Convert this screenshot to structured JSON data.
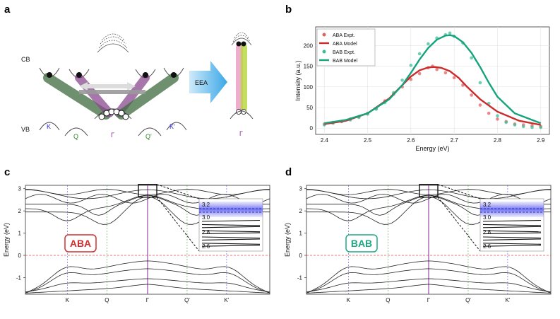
{
  "panel_a": {
    "label": "a",
    "cb_label": "CB",
    "vb_label": "VB",
    "arrow_label": "EEA",
    "valleys": [
      {
        "name": "K",
        "color": "#2a2ae0"
      },
      {
        "name": "Q",
        "color": "#2a8a2a"
      },
      {
        "name": "Γ",
        "color": "#8a2a9a"
      },
      {
        "name": "Q'",
        "color": "#2a8a2a"
      },
      {
        "name": "K'",
        "color": "#2a2ae0"
      }
    ],
    "gamma_label": "Γ"
  },
  "panel_b": {
    "label": "b"
  },
  "panel_c": {
    "label": "c",
    "tag": "ABA",
    "tag_color": "#d03030"
  },
  "panel_d": {
    "label": "d",
    "tag": "BAB",
    "tag_color": "#1fa884"
  },
  "band_axes": {
    "ylabel": "Energy (eV)",
    "yticks": [
      "3",
      "2",
      "1",
      "0",
      "-1"
    ],
    "xticks": [
      {
        "t": "K",
        "c": "#2a2ae0"
      },
      {
        "t": "Q",
        "c": "#2a8a2a"
      },
      {
        "t": "Γ",
        "c": "#8a2a9a"
      },
      {
        "t": "Q'",
        "c": "#2a8a2a"
      },
      {
        "t": "K'",
        "c": "#2a2ae0"
      }
    ],
    "inset_ticks": [
      "3.2",
      "3.0",
      "2.8",
      "2.6"
    ]
  },
  "chart_data": [
    {
      "type": "scatter",
      "panel": "b",
      "title": "",
      "xlabel": "Energy (eV)",
      "ylabel": "Intensity (a.u.)",
      "xlim": [
        2.38,
        2.92
      ],
      "ylim": [
        -15,
        245
      ],
      "xticks": [
        "2.4",
        "2.5",
        "2.6",
        "2.7",
        "2.8",
        "2.9"
      ],
      "yticks": [
        "0",
        "50",
        "100",
        "150",
        "200"
      ],
      "legend_position": "top-left",
      "series": [
        {
          "name": "ABA Expt.",
          "kind": "points",
          "color": "#e06060",
          "x": [
            2.4,
            2.42,
            2.44,
            2.46,
            2.48,
            2.5,
            2.52,
            2.54,
            2.56,
            2.58,
            2.6,
            2.62,
            2.64,
            2.65,
            2.66,
            2.68,
            2.7,
            2.72,
            2.74,
            2.76,
            2.78,
            2.8,
            2.82,
            2.84,
            2.86,
            2.88,
            2.9
          ],
          "y": [
            10,
            14,
            16,
            22,
            28,
            36,
            48,
            66,
            82,
            100,
            118,
            132,
            146,
            150,
            142,
            134,
            122,
            104,
            80,
            56,
            36,
            22,
            16,
            10,
            8,
            6,
            4
          ]
        },
        {
          "name": "ABA Model",
          "kind": "line",
          "color": "#cc2b2b",
          "x": [
            2.4,
            2.45,
            2.5,
            2.55,
            2.58,
            2.6,
            2.62,
            2.64,
            2.655,
            2.67,
            2.69,
            2.71,
            2.73,
            2.76,
            2.8,
            2.85,
            2.9
          ],
          "y": [
            10,
            18,
            36,
            72,
            104,
            125,
            140,
            147,
            148,
            146,
            138,
            122,
            100,
            70,
            40,
            18,
            8
          ]
        },
        {
          "name": "BAB Expt.",
          "kind": "points",
          "color": "#3dbf96",
          "x": [
            2.4,
            2.42,
            2.44,
            2.46,
            2.48,
            2.5,
            2.52,
            2.54,
            2.56,
            2.58,
            2.6,
            2.62,
            2.64,
            2.66,
            2.68,
            2.69,
            2.7,
            2.72,
            2.74,
            2.76,
            2.78,
            2.8,
            2.82,
            2.84,
            2.86,
            2.88,
            2.9
          ],
          "y": [
            8,
            12,
            16,
            20,
            26,
            34,
            46,
            62,
            86,
            116,
            152,
            180,
            204,
            218,
            226,
            230,
            222,
            206,
            170,
            110,
            60,
            30,
            14,
            8,
            4,
            2,
            2
          ]
        },
        {
          "name": "BAB Model",
          "kind": "line",
          "color": "#14a37c",
          "x": [
            2.4,
            2.45,
            2.5,
            2.55,
            2.58,
            2.6,
            2.62,
            2.64,
            2.66,
            2.68,
            2.69,
            2.7,
            2.72,
            2.74,
            2.76,
            2.78,
            2.8,
            2.84,
            2.9
          ],
          "y": [
            12,
            20,
            36,
            70,
            104,
            134,
            166,
            194,
            214,
            224,
            225,
            223,
            208,
            182,
            148,
            110,
            76,
            36,
            12
          ]
        }
      ]
    }
  ]
}
